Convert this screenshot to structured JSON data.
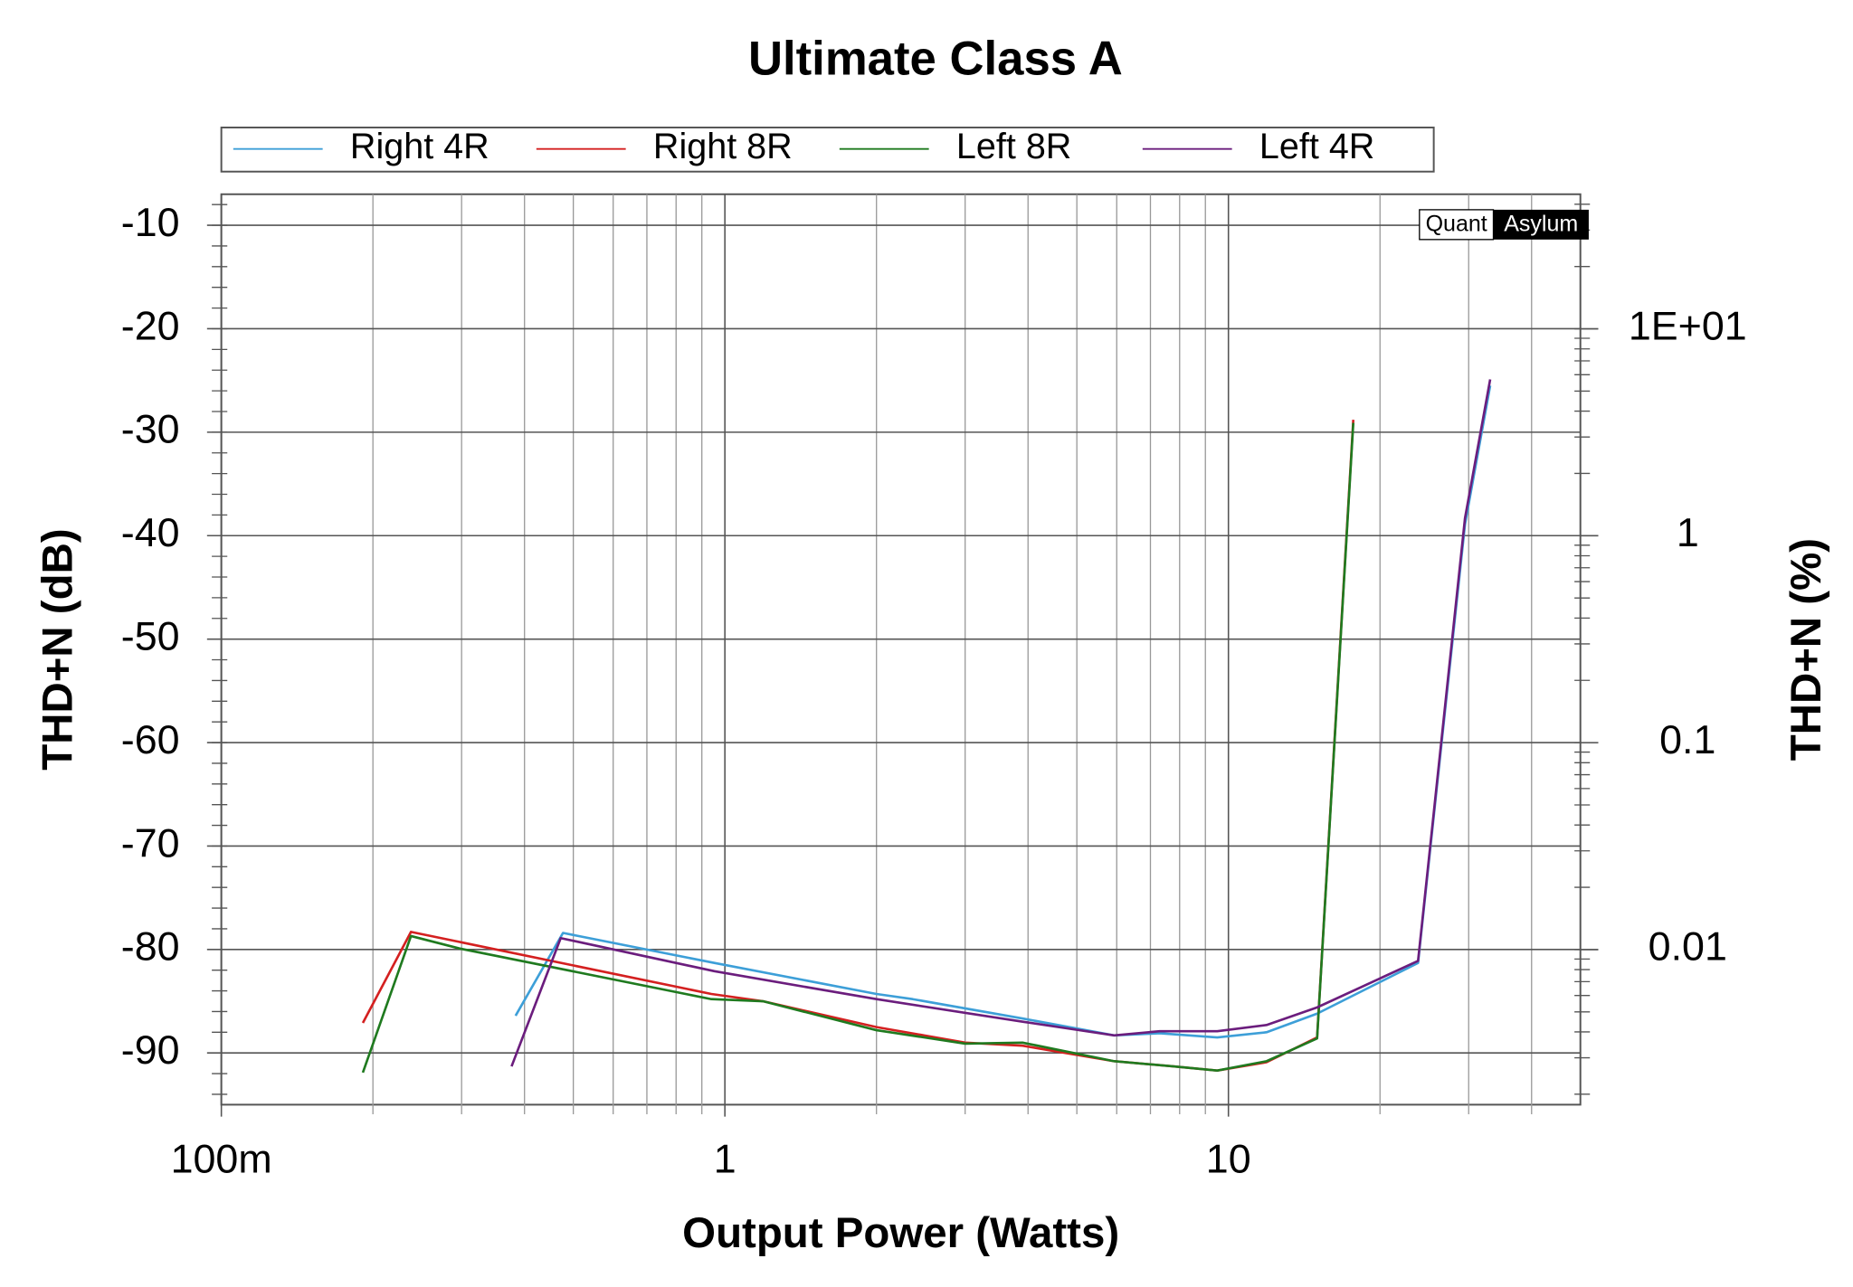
{
  "chart_data": {
    "type": "line",
    "title": "Ultimate Class A",
    "x_label": "Output Power (Watts)",
    "y_label": "THD+N (dB)",
    "y2_label": "THD+N (%)",
    "watermark": [
      "Quant",
      "Asylum"
    ],
    "x_log": true,
    "y2_log": true,
    "grid": true,
    "legend": "top",
    "xlim": [
      0.1,
      50
    ],
    "xticks": [
      {
        "value": 0.1,
        "label": "100m"
      },
      1,
      10
    ],
    "ylim": [
      -95,
      -7
    ],
    "yticks": [
      -10,
      -20,
      -30,
      -40,
      -50,
      -60,
      -70,
      -80,
      -90
    ],
    "y2lim": [
      0.00178,
      44.7
    ],
    "y2ticks": [
      {
        "value": 10,
        "label": "1E+01"
      },
      1,
      0.1,
      0.01
    ],
    "series": [
      {
        "name": "Right 4R",
        "color": "#3d9fd8",
        "x": [
          0.384,
          0.477,
          0.953,
          2.0,
          2.36,
          3.93,
          5.93,
          7.3,
          9.5,
          11.9,
          15.0,
          23.8,
          29.5,
          33.1
        ],
        "values": [
          -86.4,
          -78.4,
          -81.3,
          -84.3,
          -84.8,
          -86.7,
          -88.3,
          -88.1,
          -88.5,
          -88.0,
          -86.2,
          -81.3,
          -38.9,
          -25.5
        ]
      },
      {
        "name": "Right 8R",
        "color": "#d42020",
        "x": [
          0.191,
          0.238,
          0.94,
          1.19,
          2.0,
          3.0,
          3.9,
          5.93,
          7.78,
          9.5,
          11.9,
          15.0,
          17.7
        ],
        "values": [
          -87.1,
          -78.3,
          -84.3,
          -85.0,
          -87.5,
          -89.0,
          -89.3,
          -90.8,
          -91.3,
          -91.7,
          -90.9,
          -88.5,
          -28.8
        ]
      },
      {
        "name": "Left 8R",
        "color": "#1f7a1f",
        "x": [
          0.191,
          0.238,
          0.297,
          0.94,
          1.19,
          2.0,
          3.0,
          3.9,
          5.93,
          7.78,
          9.5,
          11.9,
          15.0,
          17.7
        ],
        "values": [
          -91.9,
          -78.7,
          -79.9,
          -84.8,
          -85.0,
          -87.8,
          -89.1,
          -89.0,
          -90.8,
          -91.3,
          -91.7,
          -90.8,
          -88.6,
          -29.1
        ]
      },
      {
        "name": "Left 4R",
        "color": "#6b1d7d",
        "x": [
          0.377,
          0.472,
          0.953,
          2.0,
          3.93,
          5.93,
          7.3,
          9.5,
          11.9,
          15.0,
          23.8,
          29.5,
          33.1
        ],
        "values": [
          -91.3,
          -78.9,
          -82.1,
          -84.8,
          -87.0,
          -88.3,
          -87.9,
          -87.9,
          -87.3,
          -85.6,
          -81.1,
          -38.3,
          -24.9
        ]
      }
    ]
  }
}
